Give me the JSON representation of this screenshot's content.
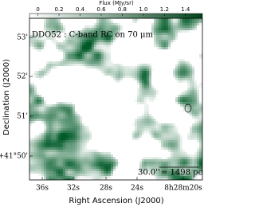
{
  "chart_data": {
    "type": "image",
    "annotation": "DDO52 : C-band RC on 70 μm",
    "scale_bar": {
      "angle": "30.0''",
      "length": "= 1498 pc"
    },
    "colorbar": {
      "label": "Flux (MJy/sr)",
      "clim": [
        -0.08,
        1.56
      ],
      "ticks": [
        0,
        0.2,
        0.4,
        0.6,
        0.8,
        {
          "value": 1,
          "label": "1.0"
        },
        1.2,
        1.4
      ],
      "colors": [
        "#ffffff",
        "#00441b"
      ]
    },
    "x_axis": {
      "label": "Right Ascension (J2000)",
      "ticks": [
        "36s",
        "32s",
        "28s",
        "24s",
        "8h28m20s"
      ]
    },
    "y_axis": {
      "label": "Declination (J2000)",
      "ticks": [
        "53'",
        "52'",
        "51'",
        "+41°50'"
      ]
    }
  }
}
